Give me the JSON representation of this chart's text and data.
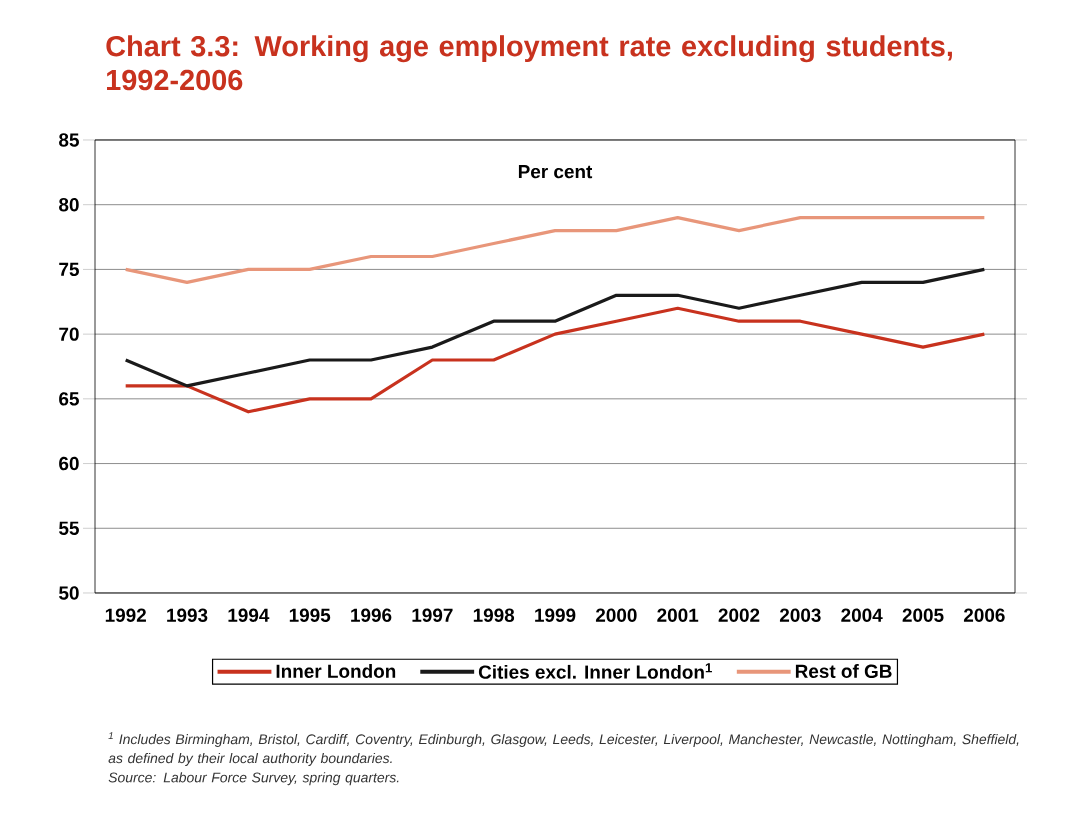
{
  "chart_data": {
    "type": "line",
    "title": "Chart 3.3: Working age employment rate excluding students, 1992-2006",
    "ylabel": "Per cent",
    "categories": [
      "1992",
      "1993",
      "1994",
      "1995",
      "1996",
      "1997",
      "1998",
      "1999",
      "2000",
      "2001",
      "2002",
      "2003",
      "2004",
      "2005",
      "2006"
    ],
    "series": [
      {
        "name": "Inner London",
        "color": "#c8321e",
        "values": [
          66,
          66,
          64,
          65,
          65,
          68,
          68,
          70,
          71,
          72,
          71,
          71,
          70,
          69,
          70
        ]
      },
      {
        "name": "Cities excl. Inner London$^{1}$",
        "color": "#1a1a1a",
        "values": [
          68,
          66,
          67,
          68,
          68,
          69,
          71,
          71,
          73,
          73,
          72,
          73,
          74,
          74,
          75
        ]
      },
      {
        "name": "Rest of GB",
        "color": "#e8967a",
        "values": [
          75,
          74,
          75,
          75,
          76,
          76,
          77,
          78,
          78,
          79,
          78,
          79,
          79,
          79,
          79
        ]
      }
    ],
    "ylim": [
      50,
      85
    ],
    "yticks": [
      50,
      55,
      60,
      65,
      70,
      75,
      80,
      85
    ],
    "grid": "y",
    "legend": "bottom",
    "annotations": [
      "$^{1}$ Includes Birmingham, Bristol, Cardiff, Coventry, Edinburgh, Glasgow, Leeds, Leicester, Liverpool, Manchester, Newcastle, Nottingham, Sheffield, as defined by their local authority boundaries.",
      "Source: Labour Force Survey, spring quarters."
    ]
  }
}
